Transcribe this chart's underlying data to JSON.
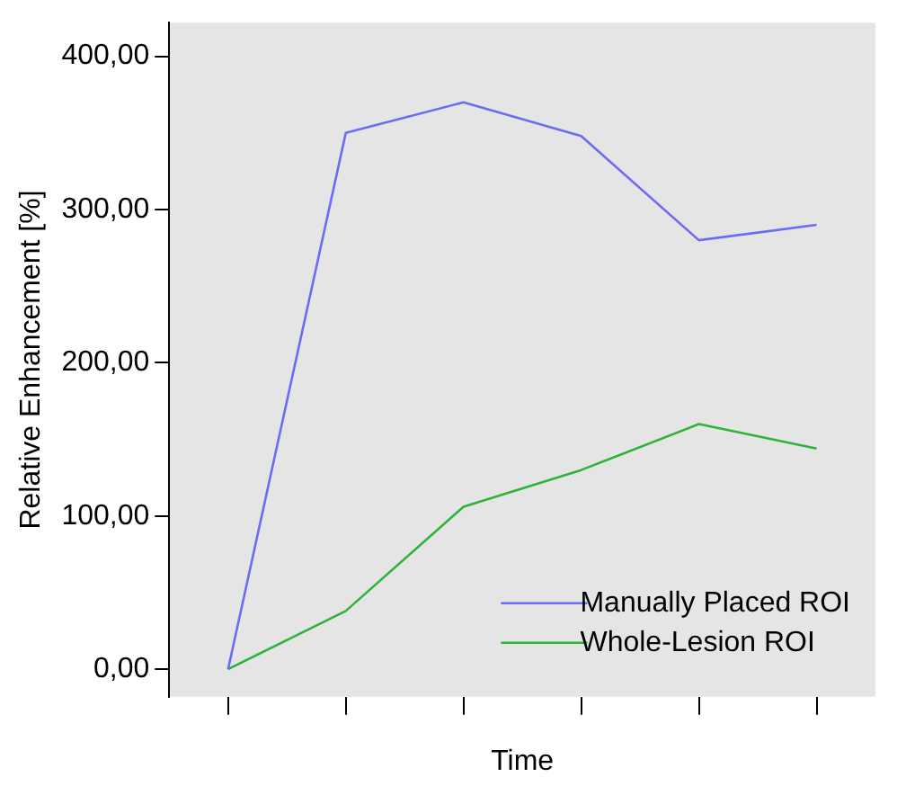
{
  "chart_data": {
    "type": "line",
    "xlabel": "Time",
    "ylabel": "Relative Enhancement [%]",
    "categories": [
      null,
      null,
      null,
      null,
      null,
      null
    ],
    "series": [
      {
        "name": "Manually Placed ROI",
        "color": "#6b6bf5",
        "values": [
          0,
          350,
          370,
          348,
          280,
          290
        ]
      },
      {
        "name": "Whole-Lesion ROI",
        "color": "#2eb33a",
        "values": [
          0,
          38,
          106,
          130,
          160,
          144
        ]
      }
    ],
    "ylim": [
      -18,
      422
    ],
    "yticks": [
      {
        "value": 0,
        "label": "0,00"
      },
      {
        "value": 100,
        "label": "100,00"
      },
      {
        "value": 200,
        "label": "200,00"
      },
      {
        "value": 300,
        "label": "300,00"
      },
      {
        "value": 400,
        "label": "400,00"
      }
    ],
    "grid": false,
    "legend": "bottom right",
    "marker": "none",
    "line_style": "solid"
  }
}
